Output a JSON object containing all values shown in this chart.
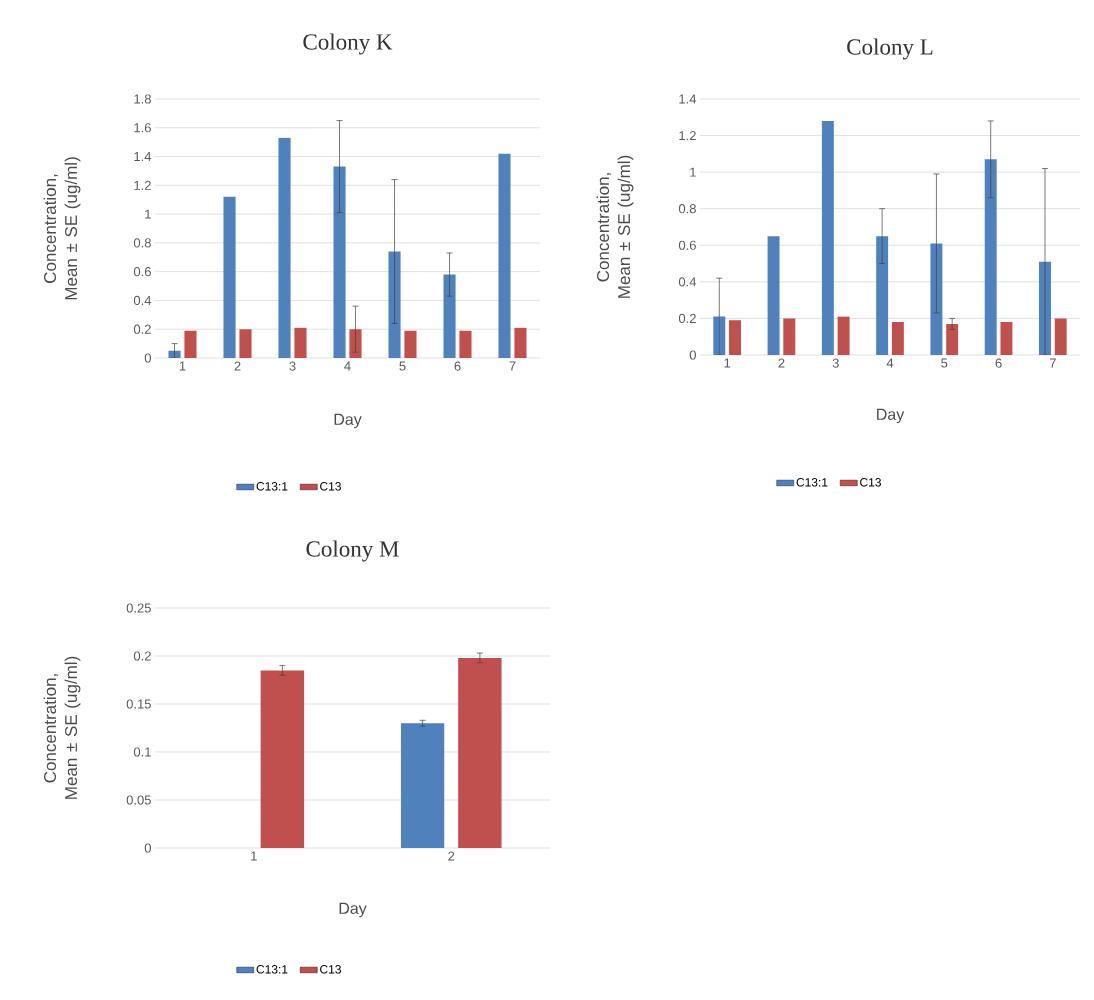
{
  "chart_data": [
    {
      "type": "bar",
      "title": "Colony K",
      "xlabel": "Day",
      "ylabel": "Concentration, Mean ± SE (ug/ml)",
      "categories": [
        "1",
        "2",
        "3",
        "4",
        "5",
        "6",
        "7"
      ],
      "series": [
        {
          "name": "C13:1",
          "color": "#4f81bd",
          "values": [
            0.05,
            1.12,
            1.53,
            1.33,
            0.74,
            0.58,
            1.42
          ],
          "errors": [
            0.05,
            null,
            null,
            0.32,
            0.5,
            0.15,
            null
          ]
        },
        {
          "name": "C13",
          "color": "#c0504d",
          "values": [
            0.19,
            0.2,
            0.21,
            0.2,
            0.19,
            0.19,
            0.21
          ],
          "errors": [
            null,
            null,
            null,
            0.16,
            null,
            null,
            null
          ]
        }
      ],
      "ylim": [
        0,
        1.8
      ],
      "yticks": [
        0,
        0.2,
        0.4,
        0.6,
        0.8,
        1,
        1.2,
        1.4,
        1.6,
        1.8
      ],
      "grid": "y",
      "legend": "bottom"
    },
    {
      "type": "bar",
      "title": "Colony L",
      "xlabel": "Day",
      "ylabel": "Concentration, Mean ± SE (ug/ml)",
      "categories": [
        "1",
        "2",
        "3",
        "4",
        "5",
        "6",
        "7"
      ],
      "series": [
        {
          "name": "C13:1",
          "color": "#4f81bd",
          "values": [
            0.21,
            0.65,
            1.28,
            0.65,
            0.61,
            1.07,
            0.51
          ],
          "errors": [
            0.21,
            null,
            null,
            0.15,
            0.38,
            0.21,
            0.51
          ]
        },
        {
          "name": "C13",
          "color": "#c0504d",
          "values": [
            0.19,
            0.2,
            0.21,
            0.18,
            0.17,
            0.18,
            0.2
          ],
          "errors": [
            null,
            null,
            null,
            null,
            0.03,
            null,
            null
          ]
        }
      ],
      "ylim": [
        0,
        1.4
      ],
      "yticks": [
        0,
        0.2,
        0.4,
        0.6,
        0.8,
        1,
        1.2,
        1.4
      ],
      "grid": "y",
      "legend": "bottom"
    },
    {
      "type": "bar",
      "title": "Colony M",
      "xlabel": "Day",
      "ylabel": "Concentration, Mean ± SE (ug/ml)",
      "categories": [
        "1",
        "2"
      ],
      "series": [
        {
          "name": "C13:1",
          "color": "#4f81bd",
          "values": [
            null,
            0.13
          ],
          "errors": [
            null,
            0.003
          ]
        },
        {
          "name": "C13",
          "color": "#c0504d",
          "values": [
            0.185,
            0.198
          ],
          "errors": [
            0.005,
            0.005
          ]
        }
      ],
      "ylim": [
        0,
        0.25
      ],
      "yticks": [
        0,
        0.05,
        0.1,
        0.15,
        0.2,
        0.25
      ],
      "grid": "y",
      "legend": "bottom"
    }
  ]
}
